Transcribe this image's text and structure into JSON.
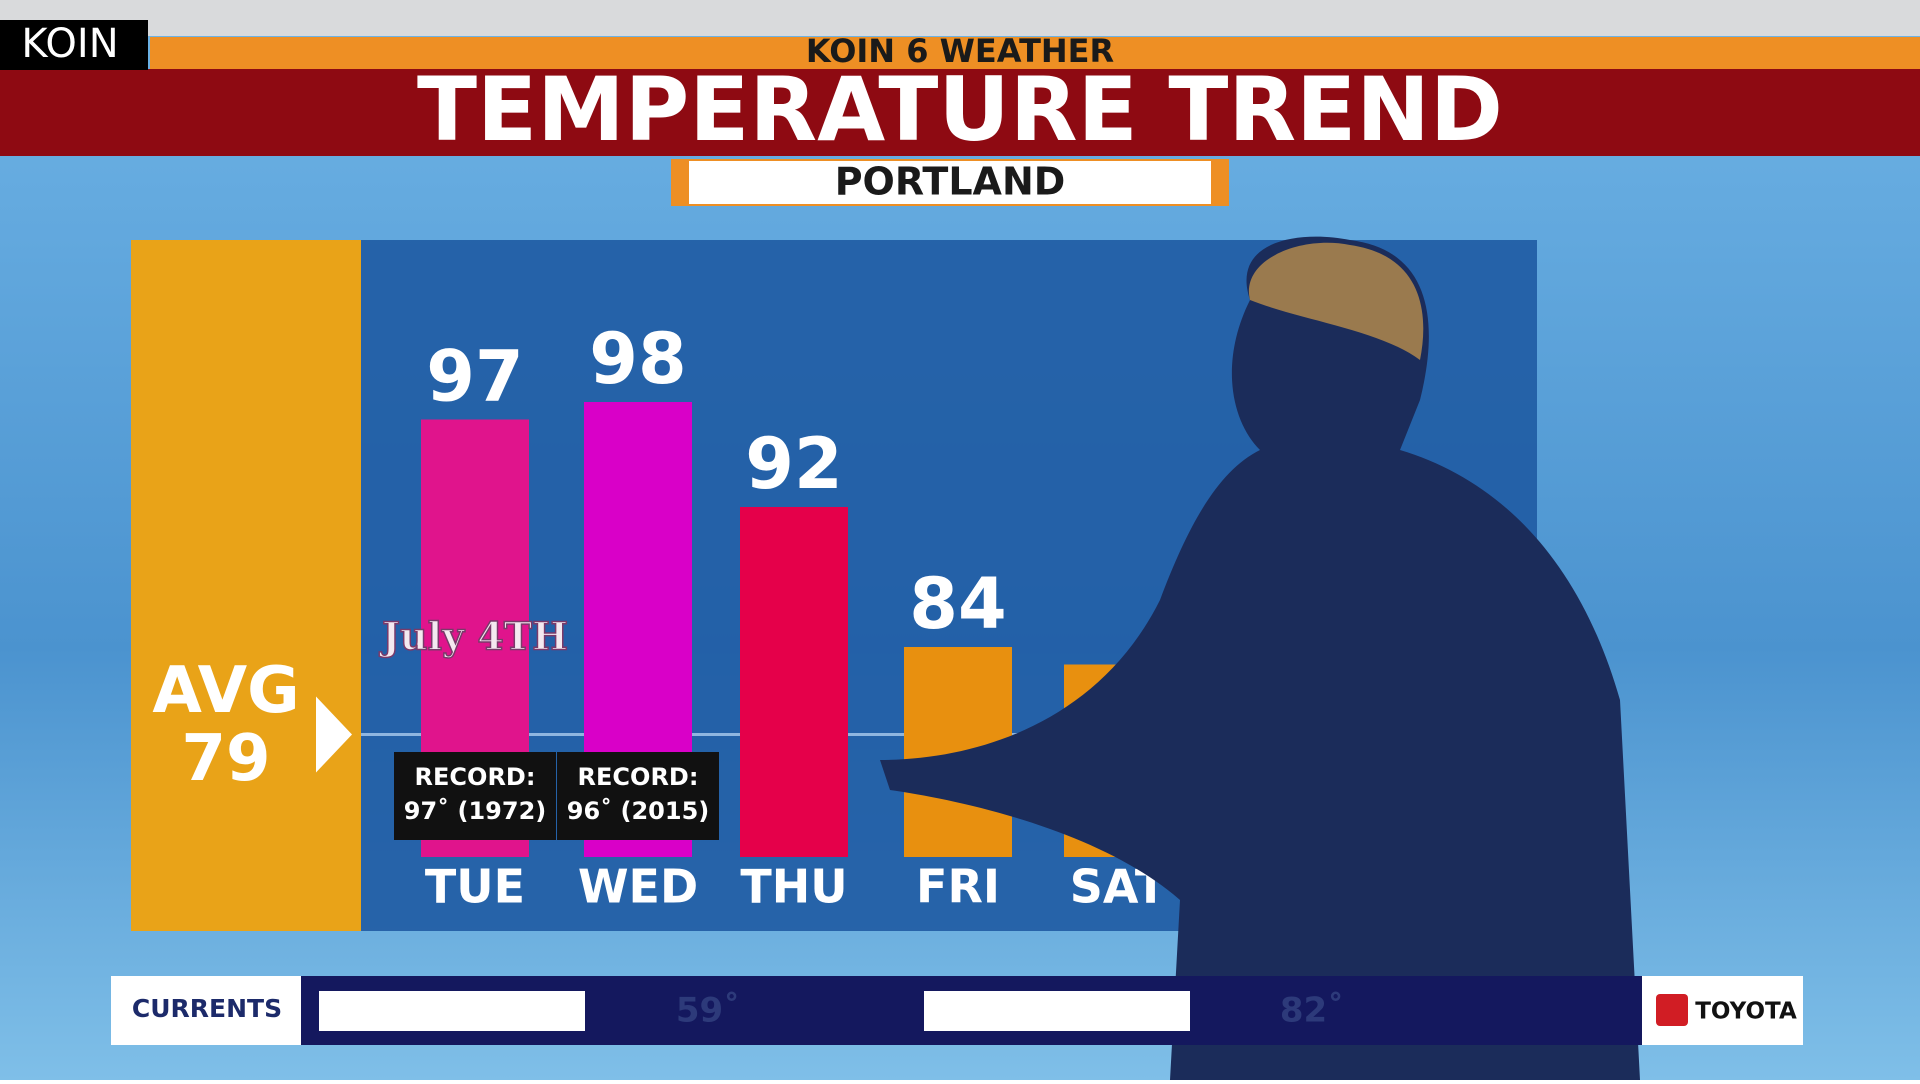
{
  "header": {
    "logo": "KOIN",
    "network": "KOIN 6 WEATHER",
    "title": "TEMPERATURE TREND",
    "location": "PORTLAND"
  },
  "chart_data": {
    "type": "bar",
    "categories": [
      "TUE",
      "WED",
      "THU",
      "FRI",
      "SAT"
    ],
    "values": [
      97,
      98,
      92,
      84,
      83
    ],
    "value_labels": [
      "97",
      "98",
      "92",
      "84",
      null
    ],
    "colors": [
      "#e0148c",
      "#d900c8",
      "#e5004a",
      "#e8900f",
      "#e8900f"
    ],
    "ylim": [
      72,
      100
    ],
    "average": {
      "label": "AVG",
      "value": 79
    },
    "records": [
      {
        "title": "RECORD:",
        "detail": "97˚ (1972)"
      },
      {
        "title": "RECORD:",
        "detail": "96˚ (2015)"
      },
      null,
      null,
      null
    ],
    "badge": "July 4TH"
  },
  "ticker": {
    "label": "CURRENTS",
    "readings": [
      "59˚",
      "82˚"
    ],
    "sponsor": "TOYOTA"
  }
}
